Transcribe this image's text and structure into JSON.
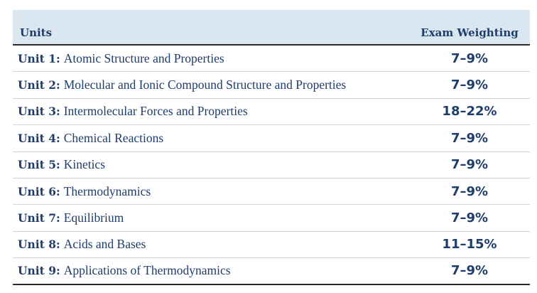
{
  "header": {
    "units_label": "Units",
    "weighting_label": "Exam Weighting"
  },
  "rows": [
    {
      "unit": "Unit 1:",
      "name": "Atomic Structure and Properties",
      "weight": "7–9%"
    },
    {
      "unit": "Unit 2:",
      "name": "Molecular and Ionic Compound Structure and Properties",
      "weight": "7–9%"
    },
    {
      "unit": "Unit 3:",
      "name": "Intermolecular Forces and Properties",
      "weight": "18–22%"
    },
    {
      "unit": "Unit 4:",
      "name": "Chemical Reactions",
      "weight": "7–9%"
    },
    {
      "unit": "Unit 5:",
      "name": "Kinetics",
      "weight": "7–9%"
    },
    {
      "unit": "Unit 6:",
      "name": "Thermodynamics",
      "weight": "7–9%"
    },
    {
      "unit": "Unit 7:",
      "name": "Equilibrium",
      "weight": "7–9%"
    },
    {
      "unit": "Unit 8:",
      "name": "Acids and Bases",
      "weight": "11–15%"
    },
    {
      "unit": "Unit 9:",
      "name": "Applications of Thermodynamics",
      "weight": "7–9%"
    }
  ],
  "colors": {
    "text": "#1f3d6b",
    "header_background": "#dae7f1",
    "rule": "#2b2b2b",
    "row_divider": "#d4d4d4"
  }
}
